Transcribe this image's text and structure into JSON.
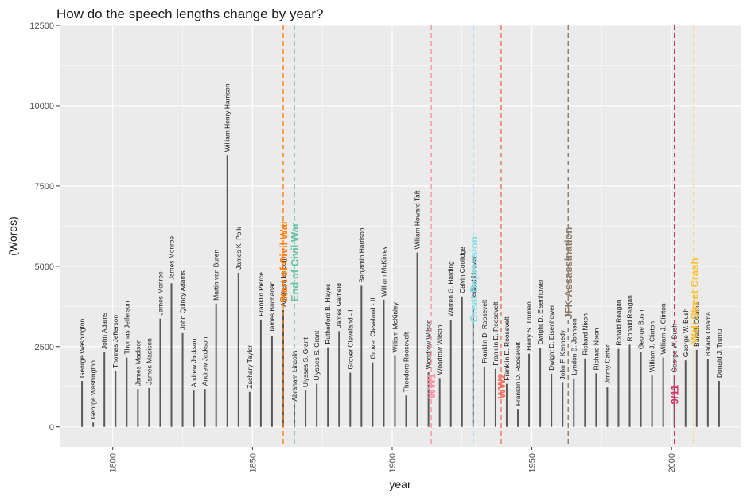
{
  "chart_data": {
    "type": "bar",
    "title": "How do the speech lengths change by year?",
    "xlabel": "year",
    "ylabel": "(Words)",
    "xlim": [
      1781,
      2025
    ],
    "ylim": [
      -625,
      12500
    ],
    "xticks": [
      1800,
      1850,
      1900,
      1950,
      2000
    ],
    "yticks": [
      0,
      2500,
      5000,
      7500,
      10000,
      12500
    ],
    "grid": true,
    "bar_color": "#595959",
    "points": [
      {
        "year": 1789,
        "words": 1430,
        "president": "George Washington"
      },
      {
        "year": 1793,
        "words": 135,
        "president": "George Washington"
      },
      {
        "year": 1797,
        "words": 2320,
        "president": "John Adams"
      },
      {
        "year": 1801,
        "words": 1730,
        "president": "Thomas Jefferson"
      },
      {
        "year": 1805,
        "words": 2160,
        "president": "Thomas Jefferson"
      },
      {
        "year": 1809,
        "words": 1180,
        "president": "James Madison"
      },
      {
        "year": 1813,
        "words": 1210,
        "president": "James Madison"
      },
      {
        "year": 1817,
        "words": 3370,
        "president": "James Monroe"
      },
      {
        "year": 1821,
        "words": 4470,
        "president": "James Monroe"
      },
      {
        "year": 1825,
        "words": 2920,
        "president": "John Quincy Adams"
      },
      {
        "year": 1829,
        "words": 1130,
        "president": "Andrew Jackson"
      },
      {
        "year": 1833,
        "words": 1180,
        "president": "Andrew Jackson"
      },
      {
        "year": 1837,
        "words": 3840,
        "president": "Martin van Buren"
      },
      {
        "year": 1841,
        "words": 8460,
        "president": "William Henry Harrison"
      },
      {
        "year": 1845,
        "words": 4800,
        "president": "James K. Polk"
      },
      {
        "year": 1849,
        "words": 1090,
        "president": "Zachary Taylor"
      },
      {
        "year": 1853,
        "words": 3340,
        "president": "Franklin Pierce"
      },
      {
        "year": 1857,
        "words": 2830,
        "president": "James Buchanan"
      },
      {
        "year": 1861,
        "words": 3640,
        "president": "Abraham Lincoln"
      },
      {
        "year": 1865,
        "words": 700,
        "president": "Abraham Lincoln"
      },
      {
        "year": 1869,
        "words": 1130,
        "president": "Ulysses S. Grant"
      },
      {
        "year": 1873,
        "words": 1340,
        "president": "Ulysses S. Grant"
      },
      {
        "year": 1877,
        "words": 2480,
        "president": "Rutherford B. Hayes"
      },
      {
        "year": 1881,
        "words": 2980,
        "president": "James Garfield"
      },
      {
        "year": 1885,
        "words": 1690,
        "president": "Grover Cleveland - I"
      },
      {
        "year": 1889,
        "words": 4390,
        "president": "Benjamin Harrison"
      },
      {
        "year": 1893,
        "words": 2010,
        "president": "Grover Cleveland - II"
      },
      {
        "year": 1897,
        "words": 3960,
        "president": "William McKinley"
      },
      {
        "year": 1901,
        "words": 2210,
        "president": "William McKinley"
      },
      {
        "year": 1905,
        "words": 980,
        "president": "Theodore Roosevelt"
      },
      {
        "year": 1909,
        "words": 5430,
        "president": "William Howard Taft"
      },
      {
        "year": 1913,
        "words": 1700,
        "president": "Woodrow Wilson"
      },
      {
        "year": 1917,
        "words": 1520,
        "president": "Woodrow Wilson"
      },
      {
        "year": 1921,
        "words": 3330,
        "president": "Warren G. Harding"
      },
      {
        "year": 1925,
        "words": 4060,
        "president": "Calvin Coolidge"
      },
      {
        "year": 1929,
        "words": 3800,
        "president": "Herbert Hoover"
      },
      {
        "year": 1933,
        "words": 1880,
        "president": "Franklin D. Roosevelt"
      },
      {
        "year": 1937,
        "words": 1810,
        "president": "Franklin D. Roosevelt"
      },
      {
        "year": 1941,
        "words": 1340,
        "president": "Franklin D. Roosevelt"
      },
      {
        "year": 1945,
        "words": 560,
        "president": "Franklin D. Roosevelt"
      },
      {
        "year": 1949,
        "words": 2280,
        "president": "Harry S. Truman"
      },
      {
        "year": 1953,
        "words": 2460,
        "president": "Dwight D. Eisenhower"
      },
      {
        "year": 1957,
        "words": 1660,
        "president": "Dwight D. Eisenhower"
      },
      {
        "year": 1961,
        "words": 1370,
        "president": "John F. Kennedy"
      },
      {
        "year": 1965,
        "words": 1510,
        "president": "Lyndon B. Johnson"
      },
      {
        "year": 1969,
        "words": 2130,
        "president": "Richard Nixon"
      },
      {
        "year": 1973,
        "words": 1670,
        "president": "Richard Nixon"
      },
      {
        "year": 1977,
        "words": 1230,
        "president": "Jimmy Carter"
      },
      {
        "year": 1981,
        "words": 2430,
        "president": "Ronald Reagan"
      },
      {
        "year": 1985,
        "words": 2560,
        "president": "Ronald Reagan"
      },
      {
        "year": 1989,
        "words": 2320,
        "president": "George Bush"
      },
      {
        "year": 1993,
        "words": 1600,
        "president": "William J. Clinton"
      },
      {
        "year": 1997,
        "words": 2160,
        "president": "William J. Clinton"
      },
      {
        "year": 2001,
        "words": 1590,
        "president": "George W. Bush"
      },
      {
        "year": 2005,
        "words": 2070,
        "president": "George W. Bush"
      },
      {
        "year": 2009,
        "words": 2400,
        "president": "Barack Obama"
      },
      {
        "year": 2013,
        "words": 2100,
        "president": "Barack Obama"
      },
      {
        "year": 2017,
        "words": 1430,
        "president": "Donald J. Trump"
      }
    ],
    "events": [
      {
        "year": 1861,
        "label": "Start of Civil War",
        "color": "#ff7f0e",
        "label_y": 3850
      },
      {
        "year": 1865,
        "label": "End of Civil War",
        "color": "#66c2a5",
        "label_y": 3900
      },
      {
        "year": 1914,
        "label": "WW1",
        "color": "#ff8fa3",
        "label_y": 880
      },
      {
        "year": 1929,
        "label": "Great Depression",
        "color": "#80deea",
        "label_y": 3250
      },
      {
        "year": 1939,
        "label": "WW2",
        "color": "#f46d5a",
        "label_y": 880
      },
      {
        "year": 1963,
        "label": "JFK Assassination",
        "color": "#8c7b6b",
        "label_y": 3350
      },
      {
        "year": 2001,
        "label": "9/11",
        "color": "#d6336c",
        "label_y": 700
      },
      {
        "year": 2008,
        "label": "Wall Street Crash",
        "color": "#fbc02d",
        "label_y": 2600
      }
    ]
  }
}
